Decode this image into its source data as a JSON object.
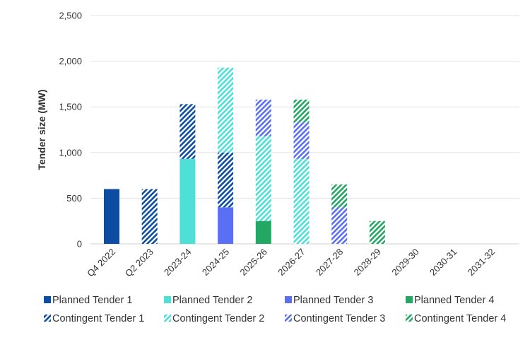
{
  "chart_data": {
    "type": "bar",
    "stacked": true,
    "categories": [
      "Q4 2022",
      "Q2 2023",
      "2023-24",
      "2024-25",
      "2025-26",
      "2026-27",
      "2027-28",
      "2028-29",
      "2029-30",
      "2030-31",
      "2031-32"
    ],
    "series": [
      {
        "name": "Planned Tender 1",
        "pattern": "solid",
        "color": "#0c4da2",
        "values": [
          600,
          0,
          0,
          0,
          0,
          0,
          0,
          0,
          0,
          0,
          0
        ]
      },
      {
        "name": "Contingent Tender 1",
        "pattern": "hatch",
        "color": "#0c4da2",
        "values": [
          0,
          600,
          600,
          600,
          0,
          0,
          0,
          0,
          0,
          0,
          0
        ]
      },
      {
        "name": "Planned Tender 2",
        "pattern": "solid",
        "color": "#4ee0d6",
        "values": [
          0,
          0,
          930,
          0,
          0,
          0,
          0,
          0,
          0,
          0,
          0
        ]
      },
      {
        "name": "Contingent Tender 2",
        "pattern": "hatch",
        "color": "#4ee0d6",
        "values": [
          0,
          0,
          0,
          930,
          930,
          930,
          0,
          0,
          0,
          0,
          0
        ]
      },
      {
        "name": "Planned Tender 3",
        "pattern": "solid",
        "color": "#5b6ff5",
        "values": [
          0,
          0,
          0,
          400,
          0,
          0,
          0,
          0,
          0,
          0,
          0
        ]
      },
      {
        "name": "Contingent Tender 3",
        "pattern": "hatch",
        "color": "#5b6ff5",
        "values": [
          0,
          0,
          0,
          0,
          400,
          400,
          400,
          0,
          0,
          0,
          0
        ]
      },
      {
        "name": "Planned Tender 4",
        "pattern": "solid",
        "color": "#22a862",
        "values": [
          0,
          0,
          0,
          0,
          250,
          0,
          0,
          0,
          0,
          0,
          0
        ]
      },
      {
        "name": "Contingent Tender 4",
        "pattern": "hatch",
        "color": "#22a862",
        "values": [
          0,
          0,
          0,
          0,
          0,
          250,
          250,
          250,
          0,
          0,
          0
        ]
      }
    ],
    "stack_order": [
      [
        "Planned Tender 1"
      ],
      [
        "Contingent Tender 1"
      ],
      [
        "Planned Tender 2",
        "Contingent Tender 1"
      ],
      [
        "Planned Tender 3",
        "Contingent Tender 1",
        "Contingent Tender 2"
      ],
      [
        "Planned Tender 4",
        "Contingent Tender 2",
        "Contingent Tender 3"
      ],
      [
        "Contingent Tender 2",
        "Contingent Tender 3",
        "Contingent Tender 4"
      ],
      [
        "Contingent Tender 3",
        "Contingent Tender 4"
      ],
      [
        "Contingent Tender 4"
      ],
      [],
      [],
      []
    ],
    "ylabel": "Tender size (MW)",
    "xlabel": "",
    "ylim": [
      0,
      2500
    ],
    "yticks": [
      0,
      500,
      1000,
      1500,
      2000,
      2500
    ],
    "ytick_labels": [
      "0",
      "500",
      "1,000",
      "1,500",
      "2,000",
      "2,500"
    ],
    "grid": true,
    "legend_position": "bottom",
    "legend_rows": [
      [
        "Planned Tender 1",
        "Planned Tender 2",
        "Planned Tender 3",
        "Planned Tender 4"
      ],
      [
        "Contingent Tender 1",
        "Contingent Tender 2",
        "Contingent Tender 3",
        "Contingent Tender 4"
      ]
    ]
  }
}
